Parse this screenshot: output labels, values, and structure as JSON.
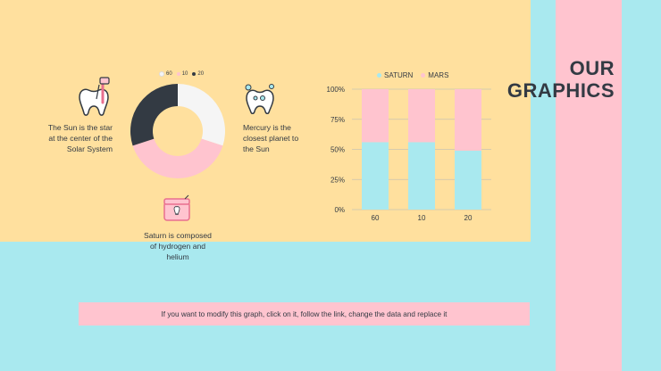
{
  "slide": {
    "title_line1": "OUR",
    "title_line2": "GRAPHICS",
    "note": "If you want to modify this graph, click on it, follow the link, change the data and replace it"
  },
  "texts": {
    "left": "The Sun is the star at the center of the Solar System",
    "right": "Mercury is the closest planet to the Sun",
    "bottom": "Saturn is composed of hydrogen and helium"
  },
  "colors": {
    "yellow": "#ffe09e",
    "cyan": "#a9e9ef",
    "pink": "#ffc4cf",
    "dark": "#333a43",
    "light": "#f5f5f5"
  },
  "icons": {
    "left": "tooth-floss-icon",
    "right": "sparkling-tooth-icon",
    "bottom": "dental-floss-box-icon"
  },
  "chart_data": [
    {
      "type": "pie",
      "variant": "donut",
      "labels": [
        "60",
        "10",
        "20"
      ],
      "values": [
        30,
        40,
        30
      ],
      "colors": [
        "#f5f5f5",
        "#ffc4cf",
        "#333a43"
      ]
    },
    {
      "type": "bar",
      "stacked": true,
      "percent": true,
      "categories": [
        "60",
        "10",
        "20"
      ],
      "series": [
        {
          "name": "SATURN",
          "values": [
            56,
            56,
            49
          ],
          "color": "#a9e9ef"
        },
        {
          "name": "MARS",
          "values": [
            44,
            44,
            51
          ],
          "color": "#ffc4cf"
        }
      ],
      "yticks": [
        "0%",
        "25%",
        "50%",
        "75%",
        "100%"
      ],
      "ylim": [
        0,
        100
      ],
      "grid": true,
      "legend": "top"
    }
  ]
}
